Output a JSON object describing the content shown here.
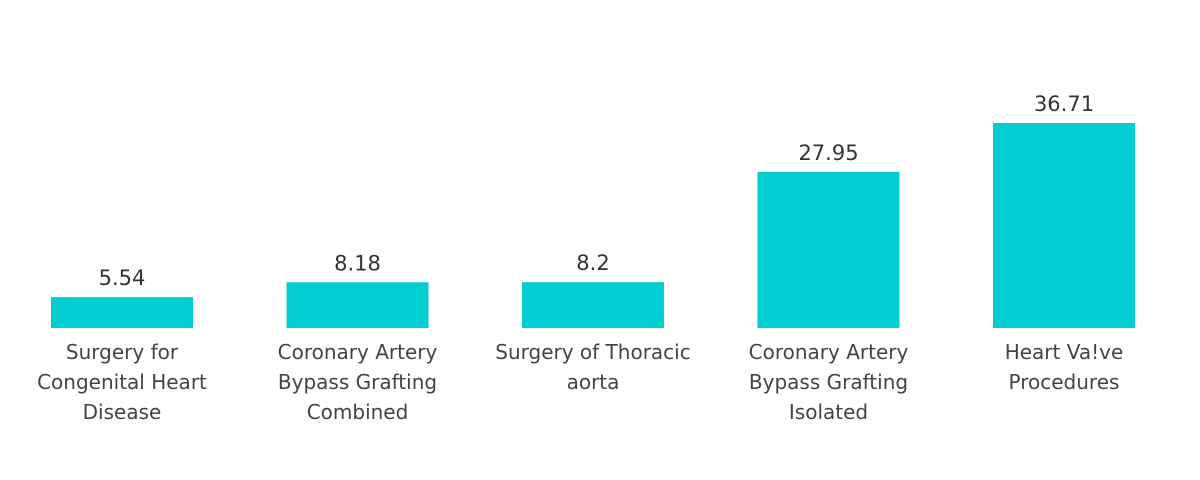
{
  "chart_data": {
    "type": "bar",
    "categories": [
      [
        "Surgery for",
        "Congenital Heart",
        "Disease"
      ],
      [
        "Coronary Artery",
        "Bypass Grafting",
        "Combined"
      ],
      [
        "Surgery of Thoracic",
        "aorta"
      ],
      [
        "Coronary Artery",
        "Bypass Grafting",
        "Isolated"
      ],
      [
        "Heart Va!ve",
        "Procedures"
      ]
    ],
    "values": [
      5.54,
      8.18,
      8.2,
      27.95,
      36.71
    ],
    "value_labels": [
      "5.54",
      "8.18",
      "8.2",
      "27.95",
      "36.71"
    ],
    "bar_color": "#00CED1",
    "grid": false,
    "legend": "none"
  }
}
